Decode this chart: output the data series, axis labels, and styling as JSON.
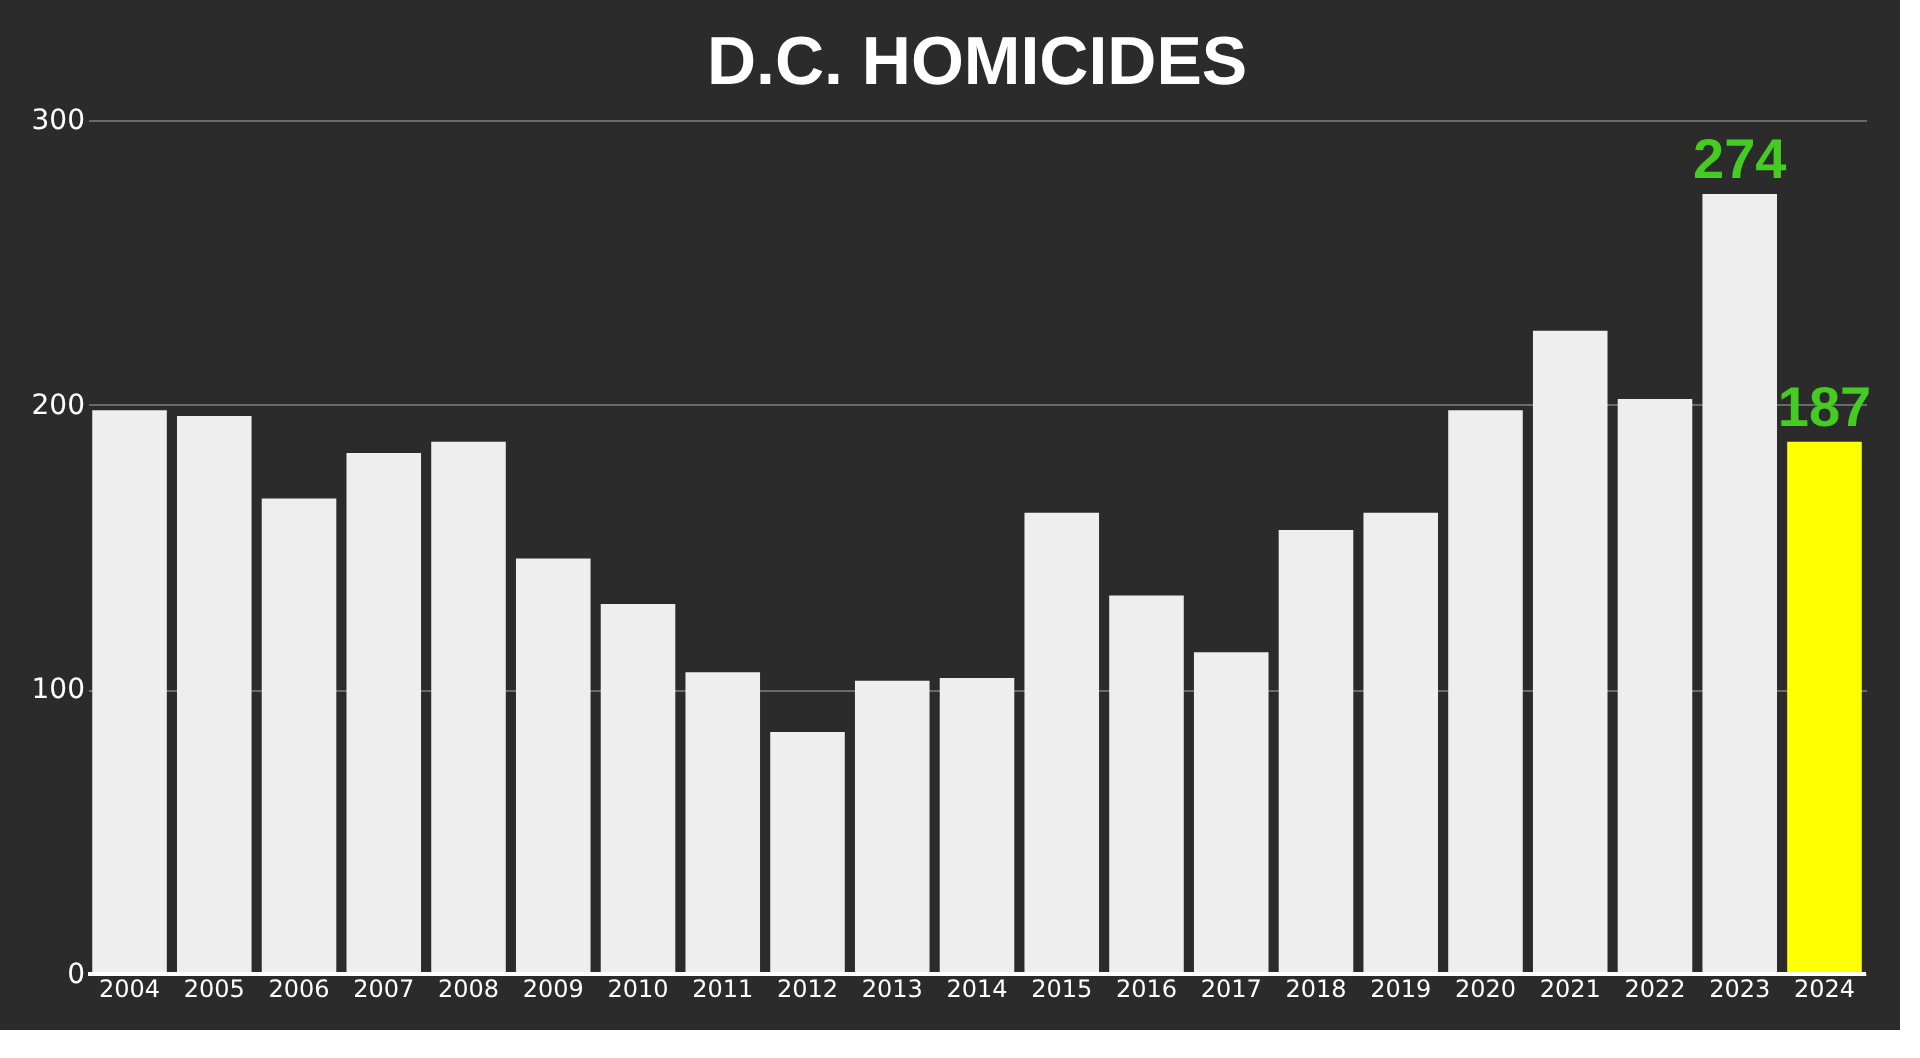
{
  "chart_data": {
    "type": "bar",
    "title": "D.C. HOMICIDES",
    "categories": [
      "2004",
      "2005",
      "2006",
      "2007",
      "2008",
      "2009",
      "2010",
      "2011",
      "2012",
      "2013",
      "2014",
      "2015",
      "2016",
      "2017",
      "2018",
      "2019",
      "2020",
      "2021",
      "2022",
      "2023",
      "2024"
    ],
    "values": [
      198,
      196,
      167,
      183,
      187,
      146,
      130,
      106,
      85,
      103,
      104,
      162,
      133,
      113,
      156,
      162,
      198,
      226,
      202,
      274,
      187
    ],
    "colors": [
      "#eeeeee",
      "#eeeeee",
      "#eeeeee",
      "#eeeeee",
      "#eeeeee",
      "#eeeeee",
      "#eeeeee",
      "#eeeeee",
      "#eeeeee",
      "#eeeeee",
      "#eeeeee",
      "#eeeeee",
      "#eeeeee",
      "#eeeeee",
      "#eeeeee",
      "#eeeeee",
      "#eeeeee",
      "#eeeeee",
      "#eeeeee",
      "#eeeeee",
      "#ffff00"
    ],
    "value_labels": [
      null,
      null,
      null,
      null,
      null,
      null,
      null,
      null,
      null,
      null,
      null,
      null,
      null,
      null,
      null,
      null,
      null,
      null,
      null,
      "274",
      "187"
    ],
    "ylim": [
      0,
      300
    ],
    "yticks": [
      0,
      100,
      200,
      300
    ],
    "grid": "y"
  }
}
